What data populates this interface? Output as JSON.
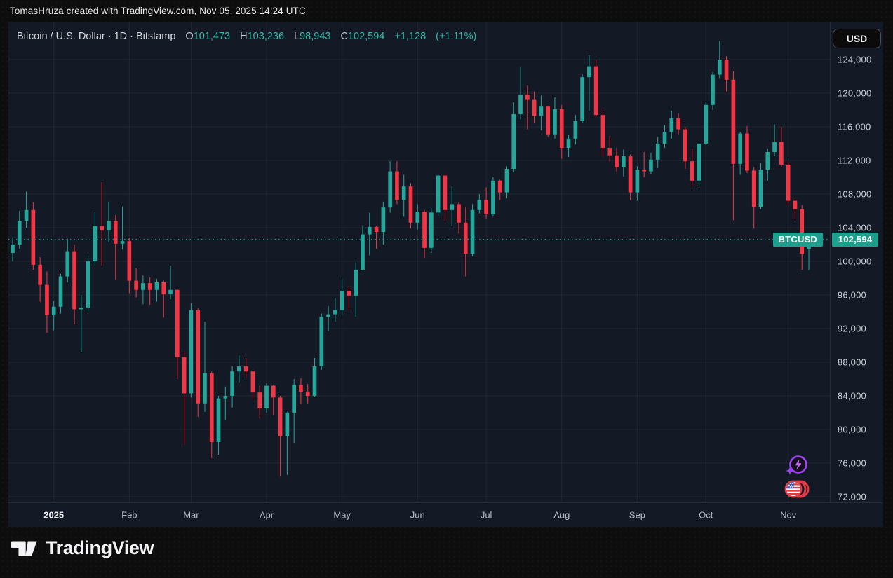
{
  "attribution": "TomasHruza created with TradingView.com, Nov 05, 2025 14:24 UTC",
  "header": {
    "title": "Bitcoin / U.S. Dollar · 1D · Bitstamp",
    "ohlc": [
      {
        "label": "O",
        "value": "101,473"
      },
      {
        "label": "H",
        "value": "103,236"
      },
      {
        "label": "L",
        "value": "98,943"
      },
      {
        "label": "C",
        "value": "102,594"
      }
    ],
    "change": "+1,128",
    "change_pct": "(+1.11%)"
  },
  "currency_button": "USD",
  "last_price_label": {
    "symbol": "BTCUSD",
    "price": "102,594"
  },
  "brand": {
    "wordmark": "TradingView"
  },
  "floating_icons": [
    "spark-lightning-icon",
    "us-flag-coins-icon"
  ],
  "colors": {
    "pane_bg": "#131a26",
    "outer_bg": "#0d0d0d",
    "up": "#26a69a",
    "down": "#f23645",
    "accent_text": "#2cbca9",
    "badge_bg": "#1e9e8c",
    "grid": "rgba(255,255,255,0.06)",
    "dotted_line": "#26a69a"
  },
  "chart_data": {
    "type": "candlestick",
    "title": "Bitcoin / U.S. Dollar",
    "symbol": "BTCUSD",
    "exchange": "Bitstamp",
    "interval": "1D",
    "last_price": 102594,
    "legend_position": "top-left",
    "grid": true,
    "y_axis": {
      "side": "right",
      "tick_step": 4000,
      "range_top_label": 124000,
      "range_bottom_label": 72000,
      "ticks": [
        {
          "value": 124000,
          "label": "124,000"
        },
        {
          "value": 120000,
          "label": "120,000"
        },
        {
          "value": 116000,
          "label": "116,000"
        },
        {
          "value": 112000,
          "label": "112,000"
        },
        {
          "value": 108000,
          "label": "108,000"
        },
        {
          "value": 104000,
          "label": "104,000"
        },
        {
          "value": 100000,
          "label": "100,000"
        },
        {
          "value": 96000,
          "label": "96,000"
        },
        {
          "value": 92000,
          "label": "92,000"
        },
        {
          "value": 88000,
          "label": "88,000"
        },
        {
          "value": 84000,
          "label": "84,000"
        },
        {
          "value": 80000,
          "label": "80,000"
        },
        {
          "value": 76000,
          "label": "76,000"
        },
        {
          "value": 72000,
          "label": "72.000"
        }
      ]
    },
    "x_axis": {
      "side": "bottom",
      "ticks": [
        {
          "label": "2025",
          "candle_index": 6,
          "major": true
        },
        {
          "label": "Feb",
          "candle_index": 17,
          "major": false
        },
        {
          "label": "Mar",
          "candle_index": 26,
          "major": false
        },
        {
          "label": "Apr",
          "candle_index": 37,
          "major": false
        },
        {
          "label": "May",
          "candle_index": 48,
          "major": false
        },
        {
          "label": "Jun",
          "candle_index": 59,
          "major": false
        },
        {
          "label": "Jul",
          "candle_index": 69,
          "major": false
        },
        {
          "label": "Aug",
          "candle_index": 80,
          "major": false
        },
        {
          "label": "Sep",
          "candle_index": 91,
          "major": false
        },
        {
          "label": "Oct",
          "candle_index": 101,
          "major": false
        },
        {
          "label": "Nov",
          "candle_index": 113,
          "major": false
        }
      ]
    },
    "candles_format": [
      "open",
      "high",
      "low",
      "close"
    ],
    "candles": [
      [
        101000,
        102800,
        100000,
        102000
      ],
      [
        102000,
        106000,
        101500,
        104800
      ],
      [
        104800,
        108300,
        104000,
        106100
      ],
      [
        106100,
        107000,
        99000,
        99600
      ],
      [
        99600,
        100500,
        95200,
        97200
      ],
      [
        97200,
        98800,
        91500,
        93600
      ],
      [
        93600,
        95300,
        91800,
        94600
      ],
      [
        94600,
        98500,
        93800,
        98200
      ],
      [
        98200,
        102700,
        97500,
        101200
      ],
      [
        101200,
        102000,
        92500,
        94300
      ],
      [
        94300,
        96000,
        89200,
        94500
      ],
      [
        94500,
        100700,
        94000,
        100000
      ],
      [
        100000,
        105800,
        99500,
        104200
      ],
      [
        104200,
        109400,
        99500,
        103700
      ],
      [
        103700,
        107100,
        102300,
        104800
      ],
      [
        104800,
        105500,
        97800,
        102100
      ],
      [
        102100,
        106500,
        101400,
        102400
      ],
      [
        102400,
        102800,
        96200,
        97700
      ],
      [
        97700,
        99200,
        95700,
        96600
      ],
      [
        96600,
        98300,
        94900,
        97400
      ],
      [
        97400,
        98100,
        94800,
        96600
      ],
      [
        96600,
        97900,
        95200,
        97500
      ],
      [
        97500,
        97700,
        93300,
        96100
      ],
      [
        96100,
        99500,
        95500,
        96600
      ],
      [
        96600,
        96700,
        86000,
        88600
      ],
      [
        88600,
        89300,
        78200,
        84300
      ],
      [
        84300,
        95000,
        83800,
        94200
      ],
      [
        94200,
        94400,
        81500,
        83100
      ],
      [
        83100,
        92800,
        82100,
        86700
      ],
      [
        86700,
        86900,
        76600,
        78500
      ],
      [
        78500,
        84000,
        77000,
        83700
      ],
      [
        83700,
        85100,
        81100,
        84000
      ],
      [
        84000,
        87500,
        82600,
        86900
      ],
      [
        86900,
        88800,
        85600,
        87500
      ],
      [
        87500,
        88500,
        86200,
        86900
      ],
      [
        86900,
        87100,
        83600,
        84400
      ],
      [
        84400,
        85200,
        81300,
        82500
      ],
      [
        82500,
        85500,
        82000,
        85200
      ],
      [
        85200,
        85300,
        81700,
        83800
      ],
      [
        83800,
        84000,
        74400,
        79200
      ],
      [
        79200,
        82100,
        74600,
        82000
      ],
      [
        82000,
        86000,
        78400,
        85300
      ],
      [
        85300,
        86100,
        83000,
        84500
      ],
      [
        84500,
        85400,
        83100,
        84000
      ],
      [
        84000,
        88500,
        83900,
        87500
      ],
      [
        87500,
        93800,
        87100,
        93400
      ],
      [
        93400,
        94700,
        91700,
        93700
      ],
      [
        93700,
        95600,
        92800,
        94200
      ],
      [
        94200,
        97900,
        93600,
        96500
      ],
      [
        96500,
        97000,
        94200,
        95900
      ],
      [
        95900,
        99900,
        93400,
        99000
      ],
      [
        99000,
        104300,
        98900,
        103200
      ],
      [
        103200,
        105800,
        100700,
        104100
      ],
      [
        104100,
        104200,
        101500,
        103500
      ],
      [
        103500,
        107100,
        102000,
        106400
      ],
      [
        106400,
        111900,
        105800,
        110700
      ],
      [
        110700,
        111900,
        106800,
        107300
      ],
      [
        107300,
        110300,
        105300,
        108900
      ],
      [
        108900,
        109300,
        103900,
        104600
      ],
      [
        104600,
        106800,
        103800,
        105900
      ],
      [
        105900,
        106100,
        100400,
        101600
      ],
      [
        101600,
        106300,
        101000,
        105800
      ],
      [
        105800,
        110300,
        105400,
        110200
      ],
      [
        110200,
        110400,
        104800,
        106100
      ],
      [
        106100,
        108900,
        104200,
        106800
      ],
      [
        106800,
        107000,
        103300,
        104600
      ],
      [
        104600,
        106400,
        98200,
        100900
      ],
      [
        100900,
        106800,
        100600,
        106100
      ],
      [
        106100,
        108000,
        105700,
        107300
      ],
      [
        107300,
        108800,
        105100,
        105600
      ],
      [
        105600,
        110000,
        105300,
        109600
      ],
      [
        109600,
        109700,
        107300,
        108200
      ],
      [
        108200,
        111300,
        107500,
        111000
      ],
      [
        111000,
        118900,
        110600,
        117500
      ],
      [
        117500,
        123100,
        116900,
        119800
      ],
      [
        119800,
        120900,
        115700,
        119200
      ],
      [
        119200,
        120200,
        116400,
        117300
      ],
      [
        117300,
        119700,
        115600,
        118400
      ],
      [
        118400,
        118500,
        114800,
        115100
      ],
      [
        115100,
        119500,
        114600,
        118100
      ],
      [
        118100,
        118600,
        112200,
        113500
      ],
      [
        113500,
        115000,
        112400,
        114600
      ],
      [
        114600,
        117400,
        113900,
        116700
      ],
      [
        116700,
        122300,
        116500,
        121900
      ],
      [
        121900,
        124500,
        117900,
        123200
      ],
      [
        123200,
        124000,
        117200,
        117400
      ],
      [
        117400,
        118000,
        112400,
        113500
      ],
      [
        113500,
        114900,
        111900,
        112600
      ],
      [
        112600,
        113500,
        110700,
        111200
      ],
      [
        111200,
        113300,
        110100,
        112500
      ],
      [
        112500,
        112700,
        107300,
        108200
      ],
      [
        108200,
        111300,
        107200,
        110900
      ],
      [
        110900,
        113000,
        110000,
        110700
      ],
      [
        110700,
        112900,
        110400,
        112100
      ],
      [
        112100,
        114800,
        111100,
        114000
      ],
      [
        114000,
        116200,
        113500,
        115400
      ],
      [
        115400,
        117900,
        114600,
        117000
      ],
      [
        117000,
        117600,
        115100,
        115700
      ],
      [
        115700,
        116000,
        111000,
        111900
      ],
      [
        111900,
        113400,
        108900,
        109600
      ],
      [
        109600,
        114100,
        109000,
        114000
      ],
      [
        114000,
        119000,
        113800,
        118600
      ],
      [
        118600,
        122500,
        118000,
        122200
      ],
      [
        122200,
        126200,
        121700,
        124000
      ],
      [
        124000,
        124400,
        120200,
        121600
      ],
      [
        121600,
        122600,
        104900,
        111600
      ],
      [
        111600,
        115400,
        110300,
        115200
      ],
      [
        115200,
        116100,
        110500,
        110800
      ],
      [
        110800,
        111200,
        103900,
        106500
      ],
      [
        106500,
        111700,
        106200,
        110900
      ],
      [
        110900,
        113400,
        109600,
        113000
      ],
      [
        113000,
        116300,
        112500,
        114200
      ],
      [
        114200,
        116000,
        111200,
        111500
      ],
      [
        111500,
        111900,
        106600,
        107200
      ],
      [
        107200,
        107500,
        105000,
        106200
      ],
      [
        106200,
        106700,
        99000,
        100900
      ],
      [
        101473,
        103236,
        98943,
        102594
      ]
    ]
  }
}
